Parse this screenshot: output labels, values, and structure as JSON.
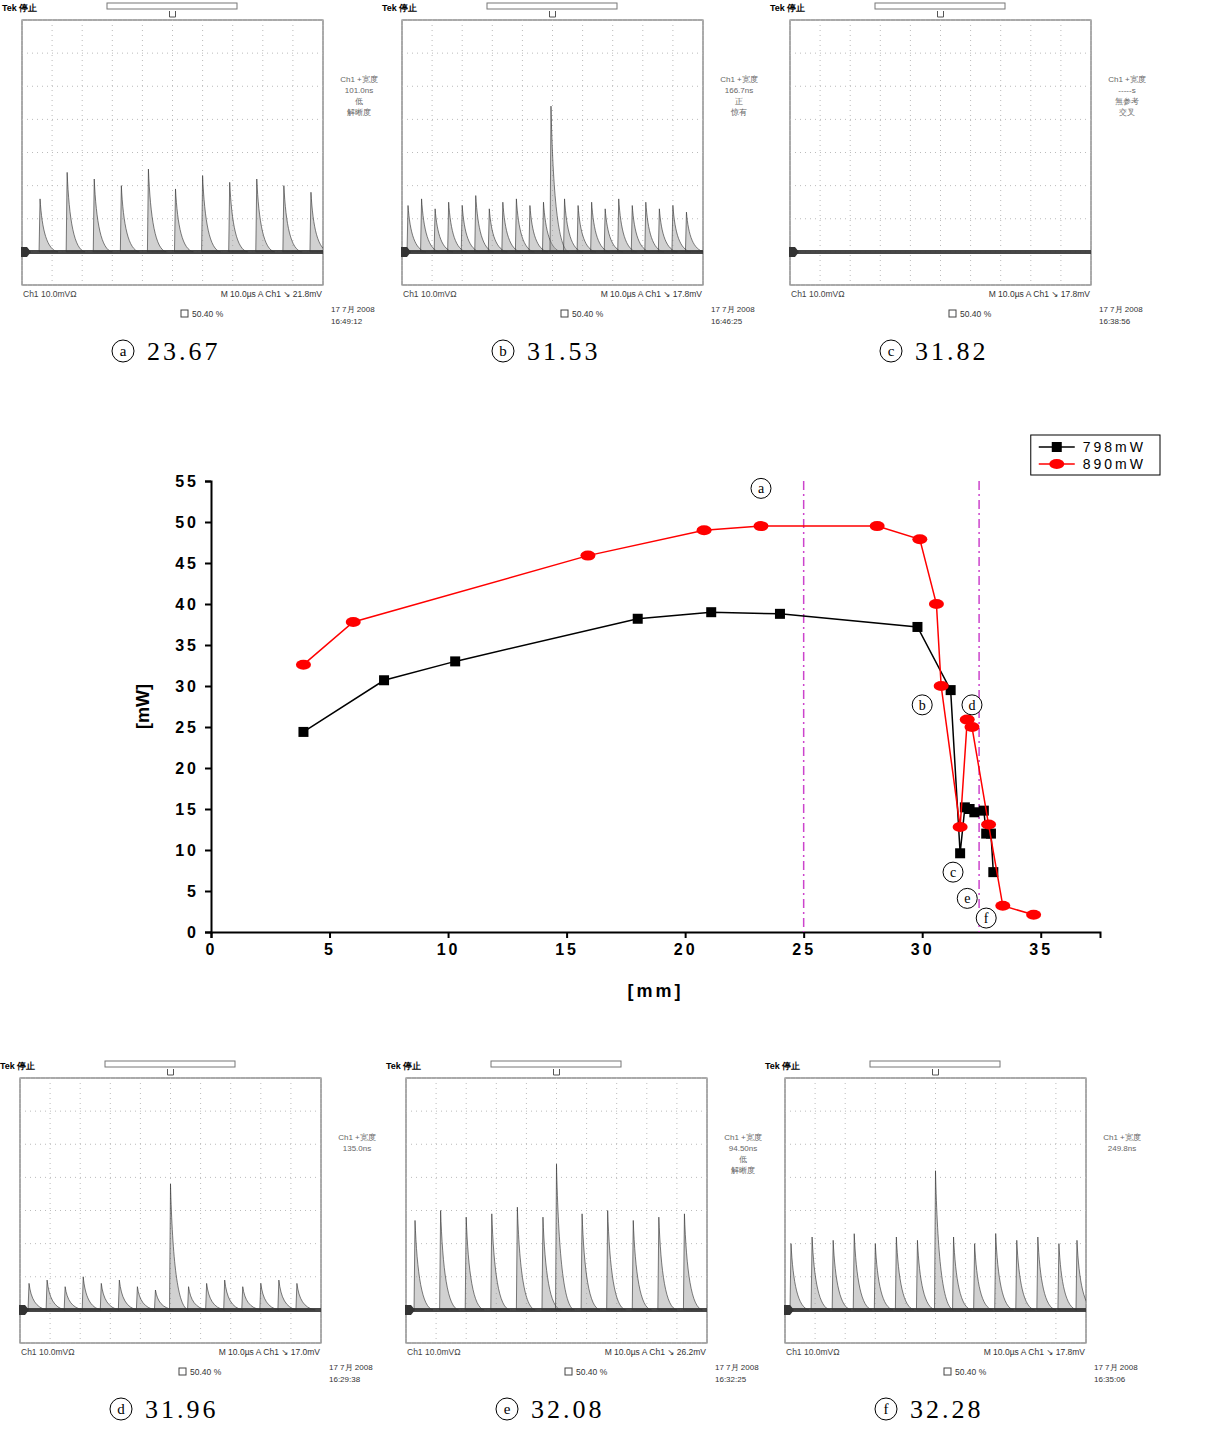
{
  "chart_data": [
    {
      "type": "line",
      "x_label": "[mm]",
      "y_label": "[mW]",
      "xlim": [
        0,
        37.5
      ],
      "ylim": [
        0,
        55
      ],
      "xticks": [
        0,
        5,
        10,
        15,
        20,
        25,
        30,
        35
      ],
      "yticks": [
        0,
        5,
        10,
        15,
        20,
        25,
        30,
        35,
        40,
        45,
        50,
        55
      ],
      "grid": false,
      "legend": "top-right",
      "series": [
        {
          "name": "798mW",
          "color": "#000000",
          "marker": "square",
          "x": [
            3.9,
            7.3,
            10.3,
            18.0,
            21.1,
            24.0,
            29.8,
            31.2,
            31.6,
            31.8,
            32.0,
            32.2,
            32.6,
            32.7,
            32.9,
            33.0
          ],
          "values": [
            24.4,
            30.7,
            33.0,
            38.2,
            39.0,
            38.8,
            37.2,
            29.5,
            9.6,
            15.2,
            15.0,
            14.6,
            14.8,
            12.0,
            12.0,
            7.3
          ]
        },
        {
          "name": "890mW",
          "color": "#ff0000",
          "marker": "circle",
          "x": [
            3.9,
            6.0,
            15.9,
            20.8,
            23.2,
            28.1,
            29.9,
            30.6,
            30.8,
            31.6,
            31.9,
            32.1,
            32.8,
            33.4,
            34.7
          ],
          "values": [
            32.6,
            37.8,
            45.9,
            49.0,
            49.5,
            49.5,
            47.9,
            40.0,
            30.0,
            12.8,
            25.9,
            25.0,
            13.1,
            3.2,
            2.1
          ]
        }
      ],
      "reference_lines": [
        {
          "x": 25,
          "color": "#cc44cc",
          "line_style": "dashdot"
        },
        {
          "x": 32.4,
          "color": "#cc44cc",
          "line_style": "dashdot"
        }
      ],
      "annotations": [
        {
          "text": "a",
          "x": 23.2,
          "y": 54.1
        },
        {
          "text": "b",
          "x": 30.0,
          "y": 27.7
        },
        {
          "text": "c",
          "x": 31.3,
          "y": 7.3
        },
        {
          "text": "d",
          "x": 32.1,
          "y": 27.7
        },
        {
          "text": "e",
          "x": 31.9,
          "y": 4.1
        },
        {
          "text": "f",
          "x": 32.7,
          "y": 1.7
        }
      ]
    },
    {
      "type": "scope",
      "label": "a",
      "caption_value": 23.67,
      "header": "Tek 停止",
      "measurement": [
        "Ch1 +宽度",
        "101.0ns",
        "低",
        "解晰度"
      ],
      "channel": "Ch1 10.0mVΩ",
      "timebase": "M 10.0µs A Ch1 ↘ 21.8mV",
      "date": "17 7月 2008",
      "time": "16:49:12",
      "cursor": "50.40 %",
      "xlim": [
        0,
        100
      ],
      "ylim": [
        -10,
        70
      ],
      "xticks": [
        0,
        10,
        20,
        30,
        40,
        50,
        60,
        70,
        80,
        90,
        100
      ],
      "yticks": [
        -10,
        0,
        10,
        20,
        30,
        40,
        50,
        60,
        70
      ],
      "grid": true,
      "tick_labels": false,
      "color": "#333333",
      "baseline": 0,
      "x": [
        6,
        15,
        24,
        33,
        42,
        51,
        60,
        69,
        78,
        87,
        96
      ],
      "values": [
        16,
        24,
        22,
        20,
        25,
        19,
        23,
        21,
        22,
        20,
        18
      ]
    },
    {
      "type": "scope",
      "label": "b",
      "caption_value": 31.53,
      "header": "Tek 停止",
      "measurement": [
        "Ch1 +宽度",
        "166.7ns",
        "正",
        "惊有"
      ],
      "channel": "Ch1 10.0mVΩ",
      "timebase": "M 10.0µs A Ch1 ↘ 17.8mV",
      "date": "17 7月 2008",
      "time": "16:46:25",
      "cursor": "50.40 %",
      "xlim": [
        0,
        100
      ],
      "ylim": [
        -10,
        70
      ],
      "xticks": [
        0,
        10,
        20,
        30,
        40,
        50,
        60,
        70,
        80,
        90,
        100
      ],
      "yticks": [
        -10,
        0,
        10,
        20,
        30,
        40,
        50,
        60,
        70
      ],
      "grid": true,
      "tick_labels": false,
      "color": "#333333",
      "baseline": 0,
      "x": [
        2,
        6.5,
        11,
        15.5,
        20,
        24.5,
        29,
        33.5,
        38,
        42.5,
        47,
        49.5,
        54,
        58.5,
        63,
        67.5,
        72,
        76.5,
        81,
        85.5,
        90,
        94.5
      ],
      "values": [
        14,
        16,
        13,
        15,
        14,
        17,
        13,
        15,
        16,
        14,
        15,
        44,
        16,
        14,
        15,
        13,
        16,
        14,
        15,
        13,
        14,
        12
      ]
    },
    {
      "type": "scope",
      "label": "c",
      "caption_value": 31.82,
      "header": "Tek 停止",
      "measurement": [
        "Ch1 +宽度",
        "-----s",
        "無参考",
        "交叉"
      ],
      "channel": "Ch1 10.0mVΩ",
      "timebase": "M 10.0µs A Ch1 ↘ 17.8mV",
      "date": "17 7月 2008",
      "time": "16:38:56",
      "cursor": "50.40 %",
      "xlim": [
        0,
        100
      ],
      "ylim": [
        -10,
        70
      ],
      "xticks": [
        0,
        10,
        20,
        30,
        40,
        50,
        60,
        70,
        80,
        90,
        100
      ],
      "yticks": [
        -10,
        0,
        10,
        20,
        30,
        40,
        50,
        60,
        70
      ],
      "grid": true,
      "tick_labels": false,
      "color": "#333333",
      "baseline": 0,
      "x": [],
      "values": []
    },
    {
      "type": "scope",
      "label": "d",
      "caption_value": 31.96,
      "header": "Tek 停止",
      "measurement": [
        "Ch1 +宽度",
        "135.0ns"
      ],
      "channel": "Ch1 10.0mVΩ",
      "timebase": "M 10.0µs A Ch1 ↘ 17.0mV",
      "date": "17 7月 2008",
      "time": "16:29:38",
      "cursor": "50.40 %",
      "xlim": [
        0,
        100
      ],
      "ylim": [
        -10,
        70
      ],
      "xticks": [
        0,
        10,
        20,
        30,
        40,
        50,
        60,
        70,
        80,
        90,
        100
      ],
      "yticks": [
        -10,
        0,
        10,
        20,
        30,
        40,
        50,
        60,
        70
      ],
      "grid": true,
      "tick_labels": false,
      "color": "#333333",
      "baseline": 0,
      "x": [
        3,
        9,
        15,
        21,
        27,
        33,
        39,
        45,
        50,
        56,
        62,
        68,
        74,
        80,
        86,
        92
      ],
      "values": [
        8,
        9,
        7,
        10,
        8,
        9,
        7,
        6,
        38,
        7,
        8,
        9,
        7,
        8,
        9,
        8
      ]
    },
    {
      "type": "scope",
      "label": "e",
      "caption_value": 32.08,
      "header": "Tek 停止",
      "measurement": [
        "Ch1 +宽度",
        "94.50ns",
        "低",
        "解晰度"
      ],
      "channel": "Ch1 10.0mVΩ",
      "timebase": "M 10.0µs A Ch1 ↘ 26.2mV",
      "date": "17 7月 2008",
      "time": "16:32:25",
      "cursor": "50.40 %",
      "xlim": [
        0,
        100
      ],
      "ylim": [
        -10,
        70
      ],
      "xticks": [
        0,
        10,
        20,
        30,
        40,
        50,
        60,
        70,
        80,
        90,
        100
      ],
      "yticks": [
        -10,
        0,
        10,
        20,
        30,
        40,
        50,
        60,
        70
      ],
      "grid": true,
      "tick_labels": false,
      "color": "#333333",
      "baseline": 0,
      "x": [
        3,
        11.5,
        20,
        28.5,
        37,
        45.5,
        50,
        58.5,
        67,
        75.5,
        84,
        92.5
      ],
      "values": [
        27,
        30,
        28,
        29,
        31,
        28,
        44,
        29,
        30,
        27,
        28,
        29
      ]
    },
    {
      "type": "scope",
      "label": "f",
      "caption_value": 32.28,
      "header": "Tek 停止",
      "measurement": [
        "Ch1 +宽度",
        "249.8ns"
      ],
      "channel": "Ch1 10.0mVΩ",
      "timebase": "M 10.0µs A Ch1 ↘ 17.8mV",
      "date": "17 7月 2008",
      "time": "16:35:06",
      "cursor": "50.40 %",
      "xlim": [
        0,
        100
      ],
      "ylim": [
        -10,
        70
      ],
      "xticks": [
        0,
        10,
        20,
        30,
        40,
        50,
        60,
        70,
        80,
        90,
        100
      ],
      "yticks": [
        -10,
        0,
        10,
        20,
        30,
        40,
        50,
        60,
        70
      ],
      "grid": true,
      "tick_labels": false,
      "color": "#333333",
      "baseline": 0,
      "x": [
        2,
        9,
        16,
        23,
        30,
        37,
        44,
        50,
        56,
        63,
        70,
        77,
        84,
        91,
        97
      ],
      "values": [
        20,
        22,
        21,
        23,
        20,
        22,
        21,
        42,
        22,
        20,
        23,
        21,
        22,
        20,
        21
      ]
    }
  ]
}
